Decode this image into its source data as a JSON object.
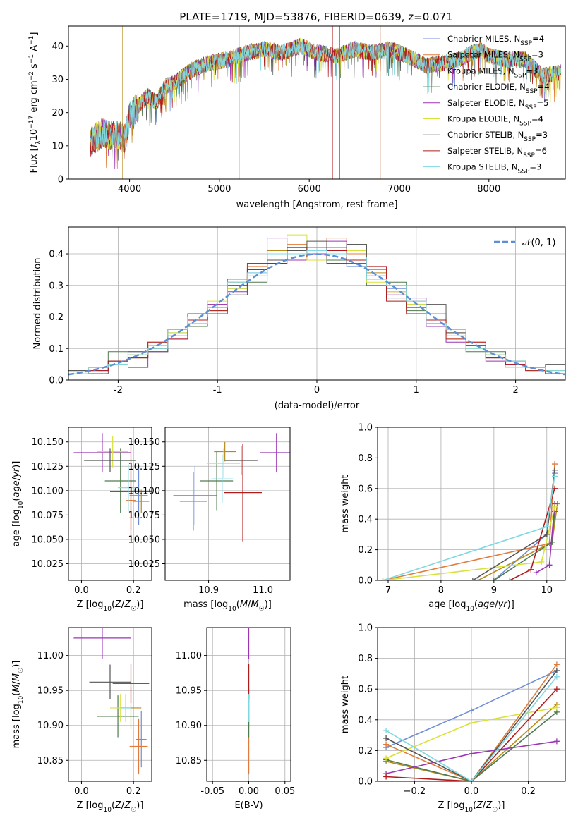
{
  "figure_title": "PLATE=1719, MJD=53876, FIBERID=0639, z=0.071",
  "colors": {
    "Chabrier MILES": "#6f8fd6",
    "Salpeter MILES": "#e07b3c",
    "Kroupa MILES": "#b88a1c",
    "Chabrier ELODIE": "#4f7a4f",
    "Salpeter ELODIE": "#9b35b5",
    "Kroupa ELODIE": "#d8e23b",
    "Chabrier STELIB": "#555555",
    "Salpeter STELIB": "#b01c1c",
    "Kroupa STELIB": "#7fd8e0",
    "normal": "#5b8fd6",
    "grid": "#b0b0b0"
  },
  "legend_spectrum": [
    {
      "name": "Chabrier MILES",
      "nssp": "4"
    },
    {
      "name": "Salpeter MILES",
      "nssp": "3"
    },
    {
      "name": "Kroupa MILES",
      "nssp": "3"
    },
    {
      "name": "Chabrier ELODIE",
      "nssp": "4"
    },
    {
      "name": "Salpeter ELODIE",
      "nssp": "5"
    },
    {
      "name": "Kroupa ELODIE",
      "nssp": "4"
    },
    {
      "name": "Chabrier STELIB",
      "nssp": "3"
    },
    {
      "name": "Salpeter STELIB",
      "nssp": "6"
    },
    {
      "name": "Kroupa STELIB",
      "nssp": "3"
    }
  ],
  "chart_data": [
    {
      "id": "spectrum",
      "type": "line",
      "title": "PLATE=1719, MJD=53876, FIBERID=0639, z=0.071",
      "xlabel": "wavelength [Angstrom, rest frame]",
      "ylabel": "Flux [f_λ 10^-17 erg cm^-2 s^-1 A^-1]",
      "xlim": [
        3320,
        8850
      ],
      "ylim": [
        0,
        46
      ],
      "xticks": [
        4000,
        5000,
        6000,
        7000,
        8000
      ],
      "yticks": [
        0,
        10,
        20,
        30,
        40
      ],
      "x": [
        3560,
        3700,
        3800,
        3900,
        3950,
        4000,
        4100,
        4200,
        4300,
        4400,
        4500,
        4700,
        4900,
        5100,
        5300,
        5500,
        5700,
        5900,
        6100,
        6300,
        6500,
        6700,
        6900,
        7100,
        7300,
        7500,
        7700,
        7800,
        7900,
        8000,
        8200,
        8400,
        8600,
        8800
      ],
      "y": [
        11,
        14,
        13,
        13,
        12,
        19,
        22,
        25,
        23,
        28,
        29,
        33,
        35,
        36,
        38,
        39,
        38,
        40,
        38,
        37,
        39,
        38,
        39,
        37,
        34,
        35,
        36,
        38,
        39,
        37,
        36,
        36,
        31,
        32
      ],
      "grid": false,
      "legend": "top-right"
    },
    {
      "id": "residuals",
      "type": "histogram",
      "xlabel": "(data-model)/error",
      "ylabel": "Normed distribution",
      "xlim": [
        -2.5,
        2.5
      ],
      "ylim": [
        0,
        0.485
      ],
      "xticks": [
        -2,
        -1,
        0,
        1,
        2
      ],
      "yticks": [
        0.0,
        0.1,
        0.2,
        0.3,
        0.4
      ],
      "bin_centers": [
        -2.4,
        -2.2,
        -2.0,
        -1.8,
        -1.6,
        -1.4,
        -1.2,
        -1.0,
        -0.8,
        -0.6,
        -0.4,
        -0.2,
        0.0,
        0.2,
        0.4,
        0.6,
        0.8,
        1.0,
        1.2,
        1.4,
        1.6,
        1.8,
        2.0,
        2.2,
        2.4
      ],
      "series_heights": [
        [
          0.02,
          0.04,
          0.06,
          0.09,
          0.11,
          0.15,
          0.19,
          0.23,
          0.29,
          0.34,
          0.38,
          0.41,
          0.42,
          0.41,
          0.36,
          0.33,
          0.29,
          0.24,
          0.18,
          0.14,
          0.11,
          0.08,
          0.05,
          0.04,
          0.02
        ],
        [
          0.03,
          0.04,
          0.05,
          0.07,
          0.12,
          0.16,
          0.18,
          0.24,
          0.3,
          0.36,
          0.39,
          0.43,
          0.4,
          0.45,
          0.4,
          0.35,
          0.28,
          0.25,
          0.21,
          0.14,
          0.12,
          0.07,
          0.06,
          0.03,
          0.02
        ],
        [
          0.02,
          0.03,
          0.06,
          0.08,
          0.1,
          0.14,
          0.2,
          0.22,
          0.31,
          0.33,
          0.41,
          0.4,
          0.39,
          0.42,
          0.38,
          0.34,
          0.3,
          0.23,
          0.19,
          0.15,
          0.1,
          0.08,
          0.05,
          0.04,
          0.03
        ],
        [
          0.03,
          0.04,
          0.09,
          0.07,
          0.1,
          0.16,
          0.17,
          0.23,
          0.32,
          0.31,
          0.4,
          0.42,
          0.41,
          0.38,
          0.43,
          0.3,
          0.31,
          0.22,
          0.2,
          0.16,
          0.09,
          0.09,
          0.05,
          0.03,
          0.02
        ],
        [
          0.02,
          0.03,
          0.05,
          0.04,
          0.09,
          0.13,
          0.2,
          0.24,
          0.28,
          0.35,
          0.45,
          0.38,
          0.4,
          0.44,
          0.37,
          0.32,
          0.27,
          0.26,
          0.17,
          0.12,
          0.11,
          0.06,
          0.05,
          0.04,
          0.02
        ],
        [
          0.02,
          0.04,
          0.05,
          0.08,
          0.11,
          0.15,
          0.18,
          0.25,
          0.29,
          0.33,
          0.39,
          0.46,
          0.38,
          0.4,
          0.41,
          0.31,
          0.28,
          0.24,
          0.2,
          0.13,
          0.1,
          0.08,
          0.04,
          0.03,
          0.02
        ],
        [
          0.03,
          0.02,
          0.06,
          0.09,
          0.09,
          0.14,
          0.21,
          0.21,
          0.27,
          0.37,
          0.38,
          0.41,
          0.44,
          0.37,
          0.43,
          0.33,
          0.26,
          0.23,
          0.24,
          0.15,
          0.11,
          0.07,
          0.06,
          0.04,
          0.05
        ],
        [
          0.02,
          0.03,
          0.06,
          0.07,
          0.12,
          0.13,
          0.19,
          0.22,
          0.3,
          0.35,
          0.37,
          0.42,
          0.39,
          0.41,
          0.38,
          0.36,
          0.25,
          0.21,
          0.19,
          0.13,
          0.12,
          0.07,
          0.05,
          0.03,
          0.02
        ],
        [
          0.02,
          0.04,
          0.05,
          0.08,
          0.1,
          0.16,
          0.2,
          0.23,
          0.31,
          0.34,
          0.4,
          0.4,
          0.41,
          0.4,
          0.39,
          0.32,
          0.3,
          0.25,
          0.18,
          0.16,
          0.1,
          0.08,
          0.06,
          0.04,
          0.03
        ]
      ],
      "normal_curve": {
        "mu": 0,
        "sigma": 1,
        "label": "𝒩(0, 1)"
      },
      "grid": true,
      "legend": "top-right"
    },
    {
      "id": "age-vs-Z",
      "type": "errorbar",
      "xlabel": "Z [log10(Z/Z☉)]",
      "ylabel": "age  [log10(age/yr)]",
      "xlim": [
        -0.05,
        0.27
      ],
      "ylim": [
        10.008,
        10.165
      ],
      "xticks": [
        0.0,
        0.2
      ],
      "yticks": [
        10.025,
        10.05,
        10.075,
        10.1,
        10.125,
        10.15
      ],
      "points": [
        {
          "x": 0.22,
          "y": 10.095,
          "xerr": 0.035,
          "yerr": 0.03
        },
        {
          "x": 0.19,
          "y": 10.09,
          "xerr": 0.02,
          "yerr": 0.03
        },
        {
          "x": 0.23,
          "y": 10.089,
          "xerr": 0.03,
          "yerr": 0.012
        },
        {
          "x": 0.15,
          "y": 10.11,
          "xerr": 0.06,
          "yerr": 0.033
        },
        {
          "x": 0.08,
          "y": 10.139,
          "xerr": 0.11,
          "yerr": 0.02
        },
        {
          "x": 0.12,
          "y": 10.14,
          "xerr": 0.06,
          "yerr": 0.016
        },
        {
          "x": 0.11,
          "y": 10.131,
          "xerr": 0.1,
          "yerr": 0.012
        },
        {
          "x": 0.19,
          "y": 10.099,
          "xerr": 0.08,
          "yerr": 0.05
        },
        {
          "x": 0.18,
          "y": 10.103,
          "xerr": 0.04,
          "yerr": 0.024
        }
      ],
      "grid": true
    },
    {
      "id": "age-vs-mass",
      "type": "errorbar",
      "xlabel": "mass [log10(M/M☉)]",
      "ylabel": "",
      "xlim": [
        10.82,
        11.05
      ],
      "ylim": [
        10.008,
        10.165
      ],
      "xticks": [
        10.9,
        11.0
      ],
      "yticks": [
        10.025,
        10.05,
        10.075,
        10.1,
        10.125,
        10.15
      ],
      "points": [
        {
          "x": 10.875,
          "y": 10.095,
          "xerr": 0.04,
          "yerr": 0.03
        },
        {
          "x": 10.872,
          "y": 10.089,
          "xerr": 0.025,
          "yerr": 0.03
        },
        {
          "x": 10.93,
          "y": 10.14,
          "xerr": 0.02,
          "yerr": 0.01
        },
        {
          "x": 10.915,
          "y": 10.11,
          "xerr": 0.03,
          "yerr": 0.03
        },
        {
          "x": 11.025,
          "y": 10.139,
          "xerr": 0.03,
          "yerr": 0.02
        },
        {
          "x": 10.928,
          "y": 10.128,
          "xerr": 0.03,
          "yerr": 0.015
        },
        {
          "x": 10.96,
          "y": 10.131,
          "xerr": 0.03,
          "yerr": 0.015
        },
        {
          "x": 10.963,
          "y": 10.098,
          "xerr": 0.035,
          "yerr": 0.05
        },
        {
          "x": 10.925,
          "y": 10.112,
          "xerr": 0.02,
          "yerr": 0.025
        }
      ],
      "grid": true
    },
    {
      "id": "weight-vs-age",
      "type": "line",
      "xlabel": "age  [log10(age/yr)]",
      "ylabel": "mass weight",
      "xlim": [
        6.8,
        10.35
      ],
      "ylim": [
        0,
        1
      ],
      "xticks": [
        7,
        8,
        9,
        10
      ],
      "yticks": [
        0.0,
        0.2,
        0.4,
        0.6,
        0.8,
        1.0
      ],
      "series": [
        {
          "x": [
            9.0,
            10.0,
            10.15
          ],
          "y": [
            0.0,
            0.3,
            0.7
          ]
        },
        {
          "x": [
            6.9,
            10.05,
            10.15
          ],
          "y": [
            0.0,
            0.24,
            0.76
          ]
        },
        {
          "x": [
            8.7,
            10.1,
            10.2
          ],
          "y": [
            0.0,
            0.25,
            0.5
          ]
        },
        {
          "x": [
            9.0,
            10.1,
            10.15
          ],
          "y": [
            0.0,
            0.25,
            0.45
          ]
        },
        {
          "x": [
            9.8,
            10.05,
            10.15
          ],
          "y": [
            0.05,
            0.1,
            0.5
          ]
        },
        {
          "x": [
            6.9,
            9.9,
            10.15
          ],
          "y": [
            0.0,
            0.12,
            0.48
          ]
        },
        {
          "x": [
            8.6,
            10.0,
            10.15
          ],
          "y": [
            0.0,
            0.3,
            0.72
          ]
        },
        {
          "x": [
            9.3,
            9.7,
            10.15
          ],
          "y": [
            0.0,
            0.07,
            0.6
          ]
        },
        {
          "x": [
            6.9,
            10.0,
            10.15
          ],
          "y": [
            0.0,
            0.35,
            0.68
          ]
        }
      ],
      "grid": true
    },
    {
      "id": "mass-vs-Z",
      "type": "errorbar",
      "xlabel": "Z [log10(Z/Z☉)]",
      "ylabel": "mass [log10(M/M☉)]",
      "xlim": [
        -0.05,
        0.27
      ],
      "ylim": [
        10.82,
        11.04
      ],
      "xticks": [
        0.0,
        0.2
      ],
      "yticks": [
        10.85,
        10.9,
        10.95,
        11.0
      ],
      "points": [
        {
          "x": 0.23,
          "y": 10.88,
          "xerr": 0.02,
          "yerr": 0.04
        },
        {
          "x": 0.22,
          "y": 10.87,
          "xerr": 0.035,
          "yerr": 0.04
        },
        {
          "x": 0.19,
          "y": 10.925,
          "xerr": 0.04,
          "yerr": 0.03
        },
        {
          "x": 0.14,
          "y": 10.913,
          "xerr": 0.08,
          "yerr": 0.03
        },
        {
          "x": 0.08,
          "y": 11.025,
          "xerr": 0.11,
          "yerr": 0.03
        },
        {
          "x": 0.15,
          "y": 10.925,
          "xerr": 0.04,
          "yerr": 0.02
        },
        {
          "x": 0.11,
          "y": 10.962,
          "xerr": 0.08,
          "yerr": 0.025
        },
        {
          "x": 0.19,
          "y": 10.96,
          "xerr": 0.07,
          "yerr": 0.028
        },
        {
          "x": 0.17,
          "y": 10.925,
          "xerr": 0.02,
          "yerr": 0.02
        }
      ],
      "grid": true
    },
    {
      "id": "mass-vs-EBV",
      "type": "errorbar",
      "xlabel": "E(B-V)",
      "ylabel": "",
      "xlim": [
        -0.058,
        0.058
      ],
      "ylim": [
        10.82,
        11.04
      ],
      "xticks": [
        -0.05,
        0.0,
        0.05
      ],
      "yticks": [
        10.85,
        10.9,
        10.95,
        11.0
      ],
      "points": [
        {
          "x": 0.0,
          "y": 10.88,
          "xerr": 0.0,
          "yerr": 0.05
        },
        {
          "x": 0.0,
          "y": 10.87,
          "xerr": 0.0,
          "yerr": 0.04
        },
        {
          "x": 0.0,
          "y": 10.925,
          "xerr": 0.0,
          "yerr": 0.03
        },
        {
          "x": 0.0,
          "y": 10.913,
          "xerr": 0.0,
          "yerr": 0.03
        },
        {
          "x": 0.0,
          "y": 11.025,
          "xerr": 0.0,
          "yerr": 0.03
        },
        {
          "x": 0.0,
          "y": 10.925,
          "xerr": 0.0,
          "yerr": 0.02
        },
        {
          "x": 0.0,
          "y": 10.962,
          "xerr": 0.0,
          "yerr": 0.025
        },
        {
          "x": 0.0,
          "y": 10.96,
          "xerr": 0.0,
          "yerr": 0.028
        },
        {
          "x": 0.0,
          "y": 10.925,
          "xerr": 0.0,
          "yerr": 0.02
        }
      ],
      "grid": true
    },
    {
      "id": "weight-vs-Z",
      "type": "line",
      "xlabel": "Z [log10(Z/Z☉)]",
      "ylabel": "mass weight",
      "xlim": [
        -0.33,
        0.33
      ],
      "ylim": [
        0,
        1
      ],
      "xticks": [
        -0.2,
        0.0,
        0.2
      ],
      "yticks": [
        0.0,
        0.2,
        0.4,
        0.6,
        0.8,
        1.0
      ],
      "series": [
        {
          "x": [
            -0.3,
            0.0,
            0.3
          ],
          "y": [
            0.22,
            0.46,
            0.72
          ]
        },
        {
          "x": [
            -0.3,
            0.0,
            0.3
          ],
          "y": [
            0.24,
            0.0,
            0.76
          ]
        },
        {
          "x": [
            -0.3,
            0.0,
            0.3
          ],
          "y": [
            0.13,
            0.0,
            0.5
          ]
        },
        {
          "x": [
            -0.3,
            0.0,
            0.3
          ],
          "y": [
            0.14,
            0.0,
            0.45
          ]
        },
        {
          "x": [
            -0.3,
            0.0,
            0.3
          ],
          "y": [
            0.05,
            0.18,
            0.26
          ]
        },
        {
          "x": [
            -0.3,
            0.0,
            0.3
          ],
          "y": [
            0.15,
            0.38,
            0.48
          ]
        },
        {
          "x": [
            -0.3,
            0.0,
            0.3
          ],
          "y": [
            0.28,
            0.0,
            0.72
          ]
        },
        {
          "x": [
            -0.3,
            0.0,
            0.3
          ],
          "y": [
            0.03,
            0.0,
            0.6
          ]
        },
        {
          "x": [
            -0.3,
            0.0,
            0.3
          ],
          "y": [
            0.33,
            0.0,
            0.68
          ]
        }
      ],
      "grid": true
    }
  ]
}
